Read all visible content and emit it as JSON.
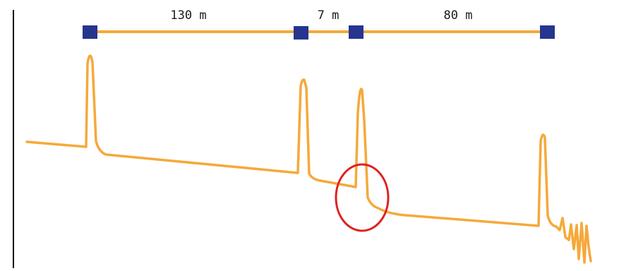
{
  "colors": {
    "trace": "#f5a93a",
    "connector": "#27358f",
    "highlight": "#e02020",
    "axis": "#000000"
  },
  "segments": [
    {
      "label": "130 m"
    },
    {
      "label": "7 m"
    },
    {
      "label": "80 m"
    }
  ],
  "connectors": [
    {
      "name": "connector-1"
    },
    {
      "name": "connector-2"
    },
    {
      "name": "connector-3"
    },
    {
      "name": "connector-4"
    }
  ],
  "highlight": {
    "shape": "ellipse",
    "target": "event-after-connector-3"
  }
}
